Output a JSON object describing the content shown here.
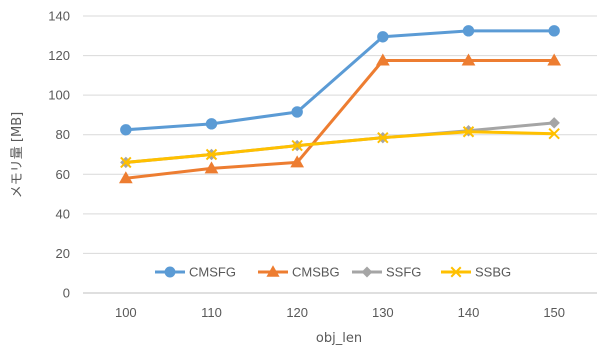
{
  "chart_data": {
    "type": "line",
    "xlabel": "obj_len",
    "ylabel": "メモリ量 [MB]",
    "categories": [
      "100",
      "110",
      "120",
      "130",
      "140",
      "150"
    ],
    "ylim": [
      0,
      140
    ],
    "yticks": [
      0,
      20,
      40,
      60,
      80,
      100,
      120,
      140
    ],
    "grid": "horizontal",
    "legend_position": "bottom-inside",
    "series": [
      {
        "name": "CMSFG",
        "color": "#5B9BD5",
        "marker": "circle",
        "values": [
          82.5,
          85.5,
          91.5,
          129.5,
          132.5,
          132.5
        ]
      },
      {
        "name": "CMSBG",
        "color": "#ED7D31",
        "marker": "triangle",
        "values": [
          58,
          63,
          66,
          117.5,
          117.5,
          117.5
        ]
      },
      {
        "name": "SSFG",
        "color": "#A5A5A5",
        "marker": "diamond",
        "values": [
          66,
          70,
          74.5,
          78.5,
          82,
          86
        ]
      },
      {
        "name": "SSBG",
        "color": "#FFC000",
        "marker": "x",
        "values": [
          66,
          70,
          74.5,
          78.5,
          81.5,
          80.5
        ]
      }
    ]
  }
}
